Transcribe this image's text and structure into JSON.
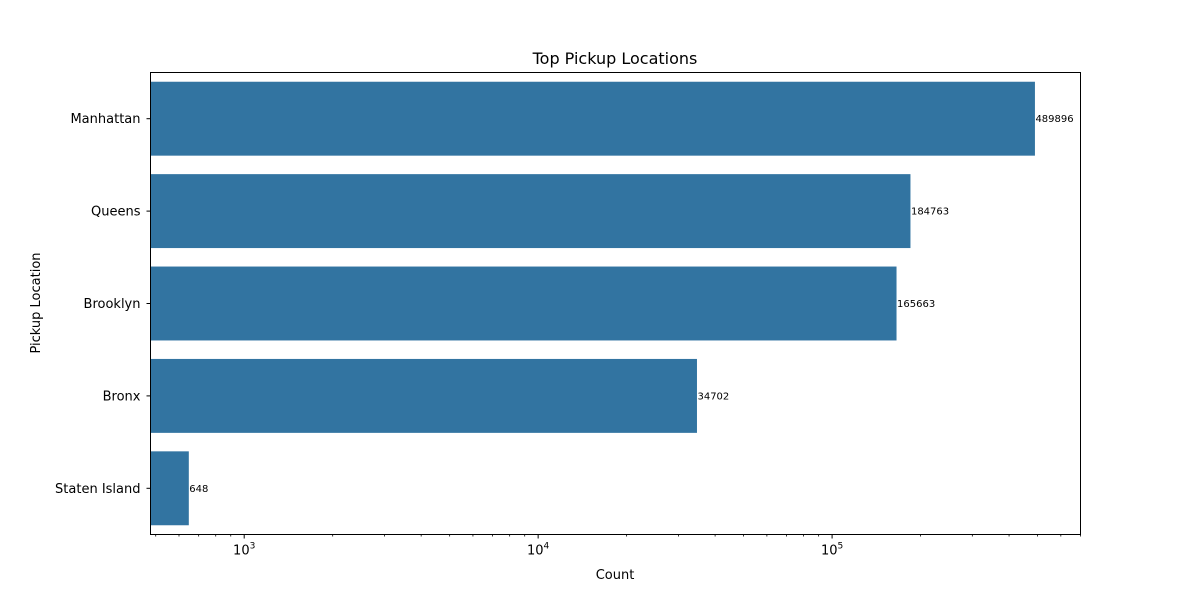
{
  "chart_data": {
    "type": "bar",
    "orientation": "horizontal",
    "title": "Top Pickup Locations",
    "xlabel": "Count",
    "ylabel": "Pickup Location",
    "x_scale": "log",
    "xlim": [
      480,
      700000
    ],
    "categories": [
      "Manhattan",
      "Queens",
      "Brooklyn",
      "Bronx",
      "Staten Island"
    ],
    "values": [
      489896,
      184763,
      165663,
      34702,
      648
    ],
    "data_labels": [
      "489896",
      "184763",
      "165663",
      "34702",
      "648"
    ],
    "x_ticks": [
      {
        "value": 1000,
        "base": "10",
        "exp": "3"
      },
      {
        "value": 10000,
        "base": "10",
        "exp": "4"
      },
      {
        "value": 100000,
        "base": "10",
        "exp": "5"
      }
    ],
    "bar_color": "#3274a1",
    "grid": false,
    "legend": "none"
  }
}
